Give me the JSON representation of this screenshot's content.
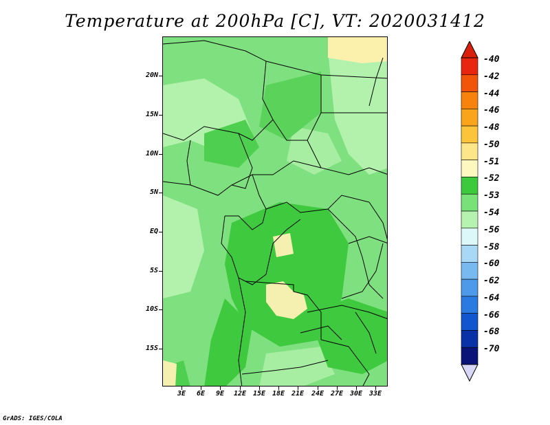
{
  "title": "Temperature at 200hPa [C], VT: 2020031412",
  "credit": "GrADS: IGES/COLA",
  "lat_labels": [
    "20N",
    "15N",
    "10N",
    "5N",
    "EQ",
    "5S",
    "10S",
    "15S"
  ],
  "lon_labels": [
    "3E",
    "6E",
    "9E",
    "12E",
    "15E",
    "18E",
    "21E",
    "24E",
    "27E",
    "30E",
    "33E"
  ],
  "colorbar": {
    "labels": [
      "-40",
      "-42",
      "-44",
      "-46",
      "-48",
      "-50",
      "-51",
      "-52",
      "-53",
      "-54",
      "-56",
      "-58",
      "-60",
      "-62",
      "-64",
      "-66",
      "-68",
      "-70"
    ],
    "colors": [
      "#e8260f",
      "#f2540a",
      "#f7830c",
      "#f9a41a",
      "#fcc43a",
      "#fde68a",
      "#fdf8c0",
      "#3cc93c",
      "#78e278",
      "#b6f2b0",
      "#dcf8f8",
      "#a8d8f6",
      "#78baf0",
      "#4e9aea",
      "#2a7ae2",
      "#1256cf",
      "#0a32a8",
      "#0a1478"
    ],
    "top_tip_color": "#d8200c",
    "bottom_tip_color": "#d8d8f6"
  }
}
